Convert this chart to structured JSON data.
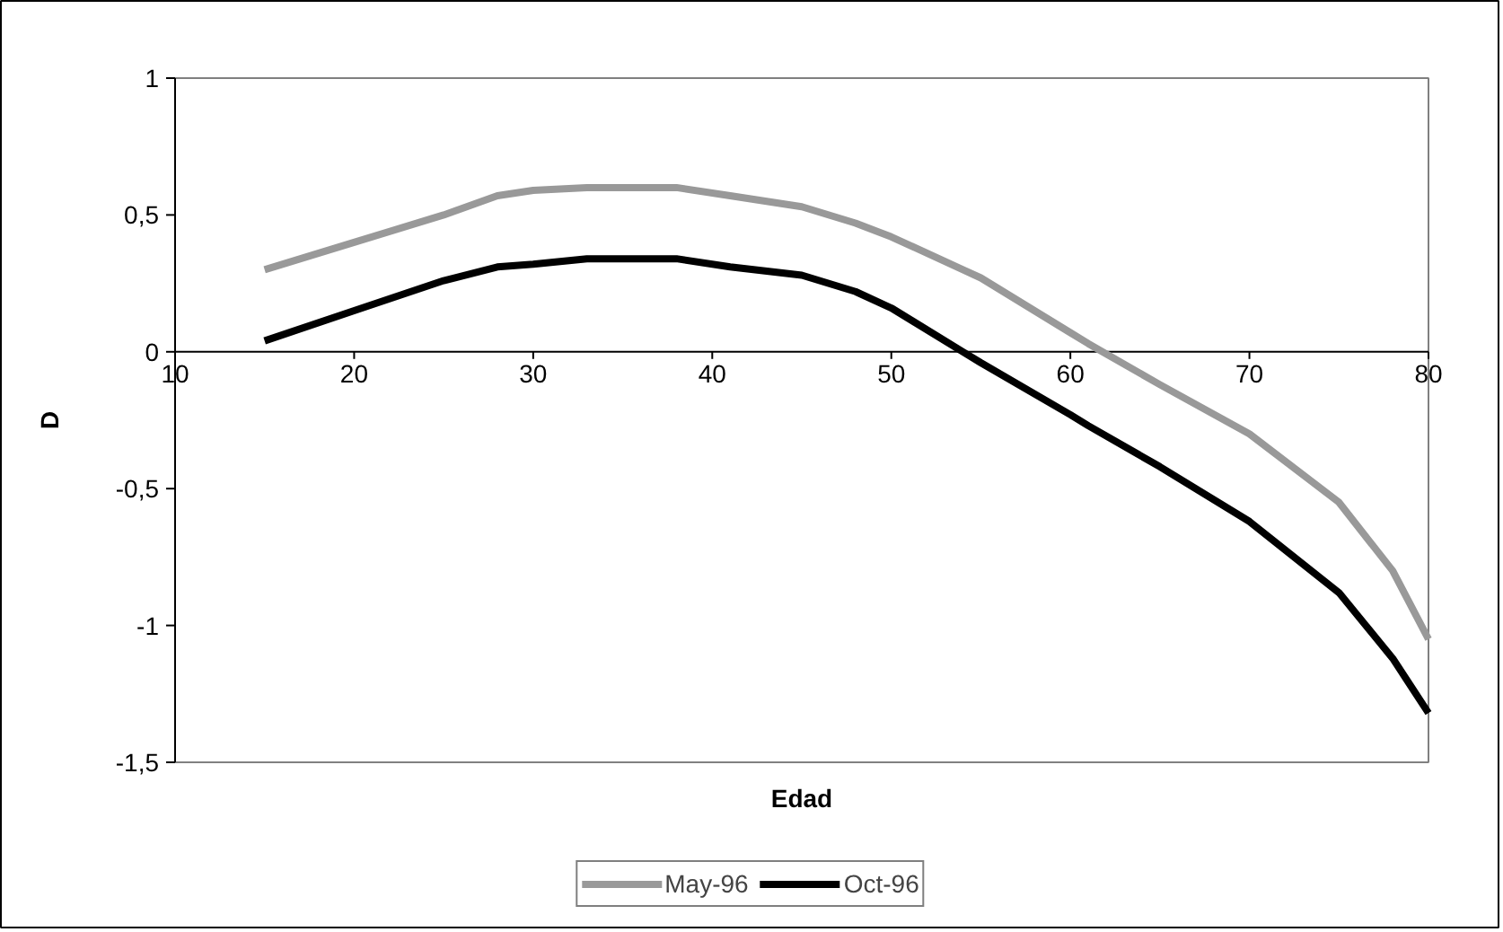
{
  "chart_data": {
    "type": "line",
    "xlabel": "Edad",
    "ylabel": "D",
    "x": [
      15,
      20,
      25,
      28,
      30,
      33,
      38,
      41,
      45,
      48,
      50,
      54,
      55,
      60,
      61,
      65,
      70,
      75,
      78,
      80
    ],
    "series": [
      {
        "name": "May-96",
        "color": "#999999",
        "values": [
          0.3,
          0.4,
          0.5,
          0.57,
          0.59,
          0.6,
          0.6,
          0.57,
          0.53,
          0.47,
          0.42,
          0.3,
          0.27,
          0.07,
          0.03,
          -0.12,
          -0.3,
          -0.55,
          -0.8,
          -1.05
        ]
      },
      {
        "name": "Oct-96",
        "color": "#000000",
        "values": [
          0.04,
          0.15,
          0.26,
          0.31,
          0.32,
          0.34,
          0.34,
          0.31,
          0.28,
          0.22,
          0.16,
          0.0,
          -0.04,
          -0.23,
          -0.27,
          -0.42,
          -0.62,
          -0.88,
          -1.12,
          -1.32
        ]
      }
    ],
    "xlim": [
      10,
      80
    ],
    "xticks": [
      10,
      20,
      30,
      40,
      50,
      60,
      70,
      80
    ],
    "ylim": [
      -1.5,
      1
    ],
    "yticks": [
      {
        "value": -1.5,
        "label": "-1,5"
      },
      {
        "value": -1,
        "label": "-1"
      },
      {
        "value": -0.5,
        "label": "-0,5"
      },
      {
        "value": 0,
        "label": "0"
      },
      {
        "value": 0.5,
        "label": "0,5"
      },
      {
        "value": 1,
        "label": "1"
      }
    ],
    "grid": false,
    "legend": "bottom",
    "marker": "none",
    "line_style": "solid"
  }
}
